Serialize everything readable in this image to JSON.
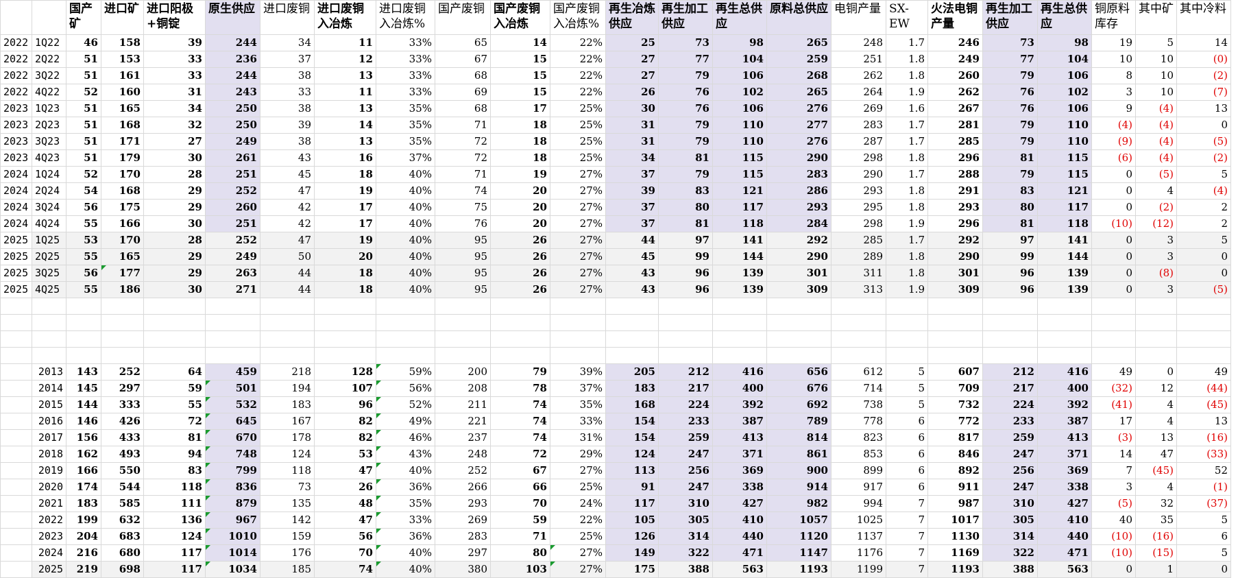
{
  "header": [
    "",
    "",
    "国产矿",
    "进口矿",
    "进口阳极+铜锭",
    "原生供应",
    "进口废铜",
    "进口废铜入冶炼",
    "进口废铜入冶炼%",
    "国产废铜",
    "国产废铜入冶炼",
    "国产废铜入冶炼%",
    "再生冶炼供应",
    "再生加工供应",
    "再生总供应",
    "原料总供应",
    "电铜产量",
    "SX-EW",
    "火法电铜产量",
    "再生加工供应",
    "再生总供应",
    "铜原料库存",
    "其中矿",
    "其中冷料"
  ],
  "quarterly_rows": [
    [
      "2022",
      "1Q22",
      "46",
      "158",
      "39",
      "244",
      "34",
      "11",
      "33%",
      "65",
      "14",
      "22%",
      "25",
      "73",
      "98",
      "265",
      "248",
      "1.7",
      "246",
      "73",
      "98",
      "19",
      "5",
      "14"
    ],
    [
      "2022",
      "2Q22",
      "51",
      "153",
      "33",
      "236",
      "37",
      "12",
      "33%",
      "67",
      "15",
      "22%",
      "27",
      "77",
      "104",
      "259",
      "251",
      "1.8",
      "249",
      "77",
      "104",
      "10",
      "10",
      "(0)"
    ],
    [
      "2022",
      "3Q22",
      "51",
      "161",
      "33",
      "244",
      "38",
      "13",
      "33%",
      "68",
      "15",
      "22%",
      "27",
      "79",
      "106",
      "268",
      "262",
      "1.8",
      "260",
      "79",
      "106",
      "8",
      "10",
      "(2)"
    ],
    [
      "2022",
      "4Q22",
      "52",
      "160",
      "31",
      "243",
      "33",
      "11",
      "33%",
      "69",
      "15",
      "22%",
      "26",
      "76",
      "102",
      "265",
      "264",
      "1.9",
      "262",
      "76",
      "102",
      "3",
      "10",
      "(7)"
    ],
    [
      "2023",
      "1Q23",
      "51",
      "165",
      "34",
      "250",
      "38",
      "13",
      "35%",
      "68",
      "17",
      "25%",
      "30",
      "76",
      "106",
      "276",
      "269",
      "1.6",
      "267",
      "76",
      "106",
      "9",
      "(4)",
      "13"
    ],
    [
      "2023",
      "2Q23",
      "51",
      "168",
      "32",
      "250",
      "39",
      "14",
      "35%",
      "71",
      "18",
      "25%",
      "31",
      "79",
      "110",
      "277",
      "283",
      "1.7",
      "281",
      "79",
      "110",
      "(4)",
      "(4)",
      "0"
    ],
    [
      "2023",
      "3Q23",
      "51",
      "171",
      "27",
      "249",
      "38",
      "13",
      "35%",
      "72",
      "18",
      "25%",
      "31",
      "79",
      "110",
      "276",
      "287",
      "1.7",
      "285",
      "79",
      "110",
      "(9)",
      "(4)",
      "(5)"
    ],
    [
      "2023",
      "4Q23",
      "51",
      "179",
      "30",
      "261",
      "43",
      "16",
      "37%",
      "72",
      "18",
      "25%",
      "34",
      "81",
      "115",
      "290",
      "298",
      "1.8",
      "296",
      "81",
      "115",
      "(6)",
      "(4)",
      "(2)"
    ],
    [
      "2024",
      "1Q24",
      "52",
      "170",
      "28",
      "251",
      "45",
      "18",
      "40%",
      "71",
      "19",
      "27%",
      "37",
      "79",
      "115",
      "283",
      "290",
      "1.7",
      "288",
      "79",
      "115",
      "0",
      "(5)",
      "5"
    ],
    [
      "2024",
      "2Q24",
      "54",
      "168",
      "29",
      "252",
      "47",
      "19",
      "40%",
      "74",
      "20",
      "27%",
      "39",
      "83",
      "121",
      "286",
      "293",
      "1.8",
      "291",
      "83",
      "121",
      "0",
      "4",
      "(4)"
    ],
    [
      "2024",
      "3Q24",
      "56",
      "175",
      "29",
      "260",
      "42",
      "17",
      "40%",
      "75",
      "20",
      "27%",
      "37",
      "80",
      "117",
      "293",
      "295",
      "1.8",
      "293",
      "80",
      "117",
      "0",
      "(2)",
      "2"
    ],
    [
      "2024",
      "4Q24",
      "55",
      "166",
      "30",
      "251",
      "42",
      "17",
      "40%",
      "76",
      "20",
      "27%",
      "37",
      "81",
      "118",
      "284",
      "298",
      "1.9",
      "296",
      "81",
      "118",
      "(10)",
      "(12)",
      "2"
    ],
    [
      "2025",
      "1Q25",
      "53",
      "170",
      "28",
      "252",
      "47",
      "19",
      "40%",
      "95",
      "26",
      "27%",
      "44",
      "97",
      "141",
      "292",
      "285",
      "1.7",
      "292",
      "97",
      "141",
      "0",
      "3",
      "5"
    ],
    [
      "2025",
      "2Q25",
      "55",
      "165",
      "29",
      "249",
      "50",
      "20",
      "40%",
      "95",
      "26",
      "27%",
      "45",
      "99",
      "144",
      "290",
      "289",
      "1.8",
      "290",
      "99",
      "144",
      "0",
      "3",
      "0"
    ],
    [
      "2025",
      "3Q25",
      "56",
      "177",
      "29",
      "263",
      "44",
      "18",
      "40%",
      "95",
      "26",
      "27%",
      "43",
      "96",
      "139",
      "301",
      "311",
      "1.8",
      "301",
      "96",
      "139",
      "0",
      "(8)",
      "0"
    ],
    [
      "2025",
      "4Q25",
      "55",
      "186",
      "30",
      "271",
      "44",
      "18",
      "40%",
      "95",
      "26",
      "27%",
      "43",
      "96",
      "139",
      "309",
      "313",
      "1.9",
      "309",
      "96",
      "139",
      "0",
      "3",
      "(5)"
    ]
  ],
  "annual_rows": [
    [
      "",
      "2013",
      "143",
      "252",
      "64",
      "459",
      "218",
      "128",
      "59%",
      "200",
      "79",
      "39%",
      "205",
      "212",
      "416",
      "656",
      "612",
      "5",
      "607",
      "212",
      "416",
      "49",
      "0",
      "49"
    ],
    [
      "",
      "2014",
      "145",
      "297",
      "59",
      "501",
      "194",
      "107",
      "56%",
      "208",
      "78",
      "37%",
      "183",
      "217",
      "400",
      "676",
      "714",
      "5",
      "709",
      "217",
      "400",
      "(32)",
      "12",
      "(44)"
    ],
    [
      "",
      "2015",
      "144",
      "333",
      "55",
      "532",
      "183",
      "96",
      "52%",
      "211",
      "74",
      "35%",
      "168",
      "224",
      "392",
      "692",
      "738",
      "5",
      "732",
      "224",
      "392",
      "(41)",
      "4",
      "(45)"
    ],
    [
      "",
      "2016",
      "146",
      "426",
      "72",
      "645",
      "167",
      "82",
      "49%",
      "221",
      "74",
      "33%",
      "154",
      "233",
      "387",
      "789",
      "778",
      "6",
      "772",
      "233",
      "387",
      "17",
      "4",
      "13"
    ],
    [
      "",
      "2017",
      "156",
      "433",
      "81",
      "670",
      "178",
      "82",
      "46%",
      "237",
      "74",
      "31%",
      "154",
      "259",
      "413",
      "814",
      "823",
      "6",
      "817",
      "259",
      "413",
      "(3)",
      "13",
      "(16)"
    ],
    [
      "",
      "2018",
      "162",
      "493",
      "94",
      "748",
      "124",
      "53",
      "43%",
      "248",
      "72",
      "29%",
      "124",
      "247",
      "371",
      "861",
      "853",
      "6",
      "846",
      "247",
      "371",
      "14",
      "47",
      "(33)"
    ],
    [
      "",
      "2019",
      "166",
      "550",
      "83",
      "799",
      "118",
      "47",
      "40%",
      "252",
      "67",
      "27%",
      "113",
      "256",
      "369",
      "900",
      "899",
      "6",
      "892",
      "256",
      "369",
      "7",
      "(45)",
      "52"
    ],
    [
      "",
      "2020",
      "174",
      "544",
      "118",
      "836",
      "73",
      "26",
      "36%",
      "266",
      "66",
      "25%",
      "91",
      "247",
      "338",
      "914",
      "917",
      "6",
      "911",
      "247",
      "338",
      "3",
      "4",
      "(1)"
    ],
    [
      "",
      "2021",
      "183",
      "585",
      "111",
      "879",
      "135",
      "48",
      "35%",
      "293",
      "70",
      "24%",
      "117",
      "310",
      "427",
      "982",
      "994",
      "7",
      "987",
      "310",
      "427",
      "(5)",
      "32",
      "(37)"
    ],
    [
      "",
      "2022",
      "199",
      "632",
      "136",
      "967",
      "142",
      "47",
      "33%",
      "269",
      "59",
      "22%",
      "105",
      "305",
      "410",
      "1057",
      "1025",
      "7",
      "1017",
      "305",
      "410",
      "40",
      "35",
      "5"
    ],
    [
      "",
      "2023",
      "204",
      "683",
      "124",
      "1010",
      "159",
      "56",
      "36%",
      "283",
      "71",
      "25%",
      "126",
      "314",
      "440",
      "1120",
      "1137",
      "7",
      "1130",
      "314",
      "440",
      "(10)",
      "(16)",
      "6"
    ],
    [
      "",
      "2024",
      "216",
      "680",
      "117",
      "1014",
      "176",
      "70",
      "40%",
      "297",
      "80",
      "27%",
      "149",
      "322",
      "471",
      "1147",
      "1176",
      "7",
      "1169",
      "322",
      "471",
      "(10)",
      "(15)",
      "5"
    ],
    [
      "",
      "2025",
      "219",
      "698",
      "117",
      "1034",
      "185",
      "74",
      "40%",
      "380",
      "103",
      "27%",
      "175",
      "388",
      "563",
      "1193",
      "1199",
      "7",
      "1193",
      "388",
      "563",
      "0",
      "1",
      "0"
    ]
  ]
}
